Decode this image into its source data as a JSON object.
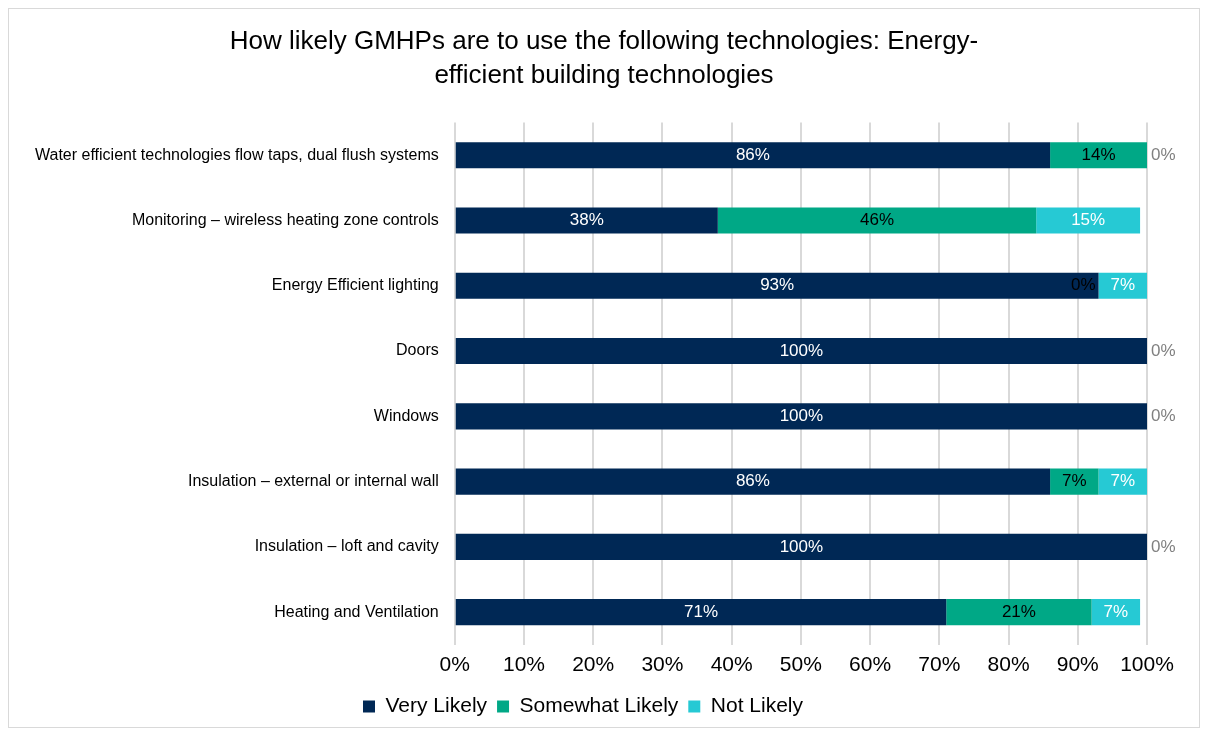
{
  "chart_data": {
    "type": "bar",
    "orientation": "horizontal",
    "stacked": true,
    "title": "How likely GMHPs are to use the following technologies: Energy-efficient building technologies",
    "categories": [
      "Water efficient technologies flow taps, dual flush systems",
      "Monitoring – wireless heating zone controls",
      "Energy Efficient lighting",
      "Doors",
      "Windows",
      "Insulation – external or internal wall",
      "Insulation – loft and cavity",
      "Heating and Ventilation"
    ],
    "series": [
      {
        "name": "Very Likely",
        "color": "#002855",
        "values": [
          86,
          38,
          93,
          100,
          100,
          86,
          100,
          71
        ],
        "value_labels": [
          "86%",
          "38%",
          "93%",
          "100%",
          "100%",
          "86%",
          "100%",
          "71%"
        ]
      },
      {
        "name": "Somewhat Likely",
        "color": "#00a886",
        "values": [
          14,
          46,
          0,
          0,
          0,
          7,
          0,
          21
        ],
        "value_labels": [
          "14%",
          "46%",
          "0%",
          null,
          null,
          "7%",
          null,
          "21%"
        ]
      },
      {
        "name": "Not Likely",
        "color": "#26c9d4",
        "values": [
          0,
          15,
          7,
          0,
          0,
          7,
          0,
          7
        ],
        "value_labels": [
          "0%",
          "15%",
          "7%",
          "0%",
          "0%",
          "7%",
          "0%",
          "7%"
        ]
      }
    ],
    "xlim": [
      0,
      100
    ],
    "xticks": [
      {
        "value": 0,
        "label": "0%"
      },
      {
        "value": 10,
        "label": "10%"
      },
      {
        "value": 20,
        "label": "20%"
      },
      {
        "value": 30,
        "label": "30%"
      },
      {
        "value": 40,
        "label": "40%"
      },
      {
        "value": 50,
        "label": "50%"
      },
      {
        "value": 60,
        "label": "60%"
      },
      {
        "value": 70,
        "label": "70%"
      },
      {
        "value": 80,
        "label": "80%"
      },
      {
        "value": 90,
        "label": "90%"
      },
      {
        "value": 100,
        "label": "100%"
      }
    ],
    "grid": "x",
    "legend": "bottom"
  }
}
